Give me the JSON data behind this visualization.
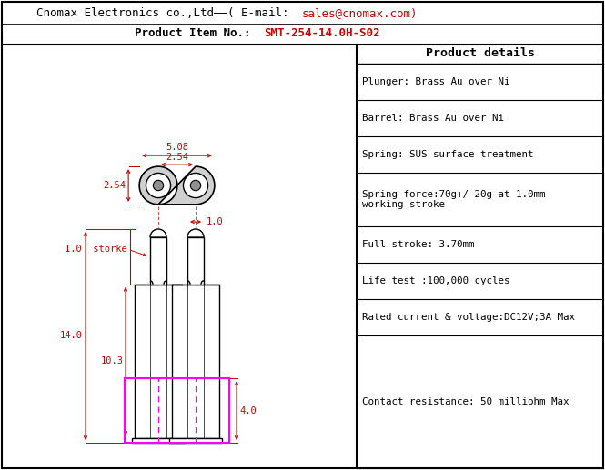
{
  "title_line1_black": "Cnomax Electronics co.,Ltd——( E-mail:  ",
  "title_line1_red": "sales@cnomax.com",
  "title_line1_end": ")",
  "title_line2_black": "Product Item No.:  ",
  "title_line2_red": "SMT-254-14.0H-S02",
  "product_details_title": "Product details",
  "product_details": [
    "Plunger: Brass Au over Ni",
    "Barrel: Brass Au over Ni",
    "Spring: SUS surface treatment",
    "Spring force:70g+/-20g at 1.0mm\nworking stroke",
    "Full stroke: 3.70mm",
    "Life test :100,000 cycles",
    "Rated current & voltage:DC12V;3A Max",
    "Contact resistance: 50 milliohm Max"
  ],
  "bg_color": "#ffffff",
  "border_color": "#000000",
  "dim_color": "#cc0000",
  "drawing_color": "#000000",
  "magenta_color": "#ff00ff"
}
